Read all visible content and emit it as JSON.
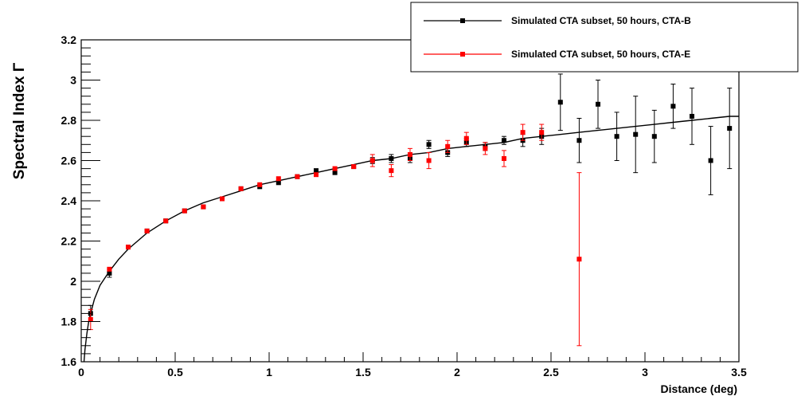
{
  "chart_data": {
    "type": "scatter",
    "xlabel": "Distance (deg)",
    "ylabel": "Spectral Index Γ",
    "xlim": [
      0,
      3.5
    ],
    "ylim": [
      1.6,
      3.2
    ],
    "x_ticks": [
      "0",
      "0.5",
      "1",
      "1.5",
      "2",
      "2.5",
      "3",
      "3.5"
    ],
    "y_ticks": [
      "1.6",
      "1.8",
      "2",
      "2.2",
      "2.4",
      "2.6",
      "2.8",
      "3",
      "3.2"
    ],
    "legend_position": "top-right",
    "fit_curve": {
      "color": "#000000",
      "x": [
        0.015,
        0.02,
        0.03,
        0.04,
        0.05,
        0.07,
        0.1,
        0.15,
        0.2,
        0.25,
        0.35,
        0.45,
        0.55,
        0.65,
        0.75,
        0.85,
        0.95,
        1.05,
        1.15,
        1.25,
        1.35,
        1.45,
        1.55,
        1.65,
        1.75,
        1.85,
        1.95,
        2.05,
        2.15,
        2.25,
        2.35,
        2.45,
        2.55,
        2.65,
        2.75,
        2.85,
        2.95,
        3.05,
        3.15,
        3.25,
        3.35,
        3.45,
        3.5
      ],
      "y": [
        1.6,
        1.66,
        1.74,
        1.8,
        1.84,
        1.91,
        1.98,
        2.05,
        2.11,
        2.16,
        2.24,
        2.3,
        2.35,
        2.39,
        2.42,
        2.45,
        2.48,
        2.5,
        2.52,
        2.54,
        2.56,
        2.58,
        2.6,
        2.61,
        2.63,
        2.64,
        2.66,
        2.67,
        2.68,
        2.69,
        2.71,
        2.72,
        2.73,
        2.74,
        2.75,
        2.76,
        2.77,
        2.78,
        2.79,
        2.8,
        2.81,
        2.82,
        2.82
      ]
    },
    "series": [
      {
        "name": "Simulated CTA subset, 50 hours, CTA-B",
        "color": "#000000",
        "x": [
          0.05,
          0.15,
          0.25,
          0.35,
          0.45,
          0.55,
          0.65,
          0.75,
          0.85,
          0.95,
          1.05,
          1.15,
          1.25,
          1.35,
          1.45,
          1.55,
          1.65,
          1.75,
          1.85,
          1.95,
          2.05,
          2.15,
          2.25,
          2.35,
          2.45,
          2.55,
          2.65,
          2.75,
          2.85,
          2.95,
          3.05,
          3.15,
          3.25,
          3.35,
          3.45
        ],
        "y": [
          1.84,
          2.04,
          2.17,
          2.25,
          2.3,
          2.35,
          2.37,
          2.41,
          2.46,
          2.47,
          2.49,
          2.52,
          2.55,
          2.54,
          2.57,
          2.6,
          2.61,
          2.61,
          2.68,
          2.64,
          2.69,
          2.67,
          2.7,
          2.7,
          2.72,
          2.89,
          2.7,
          2.88,
          2.72,
          2.73,
          2.72,
          2.87,
          2.82,
          2.6,
          2.76
        ],
        "yerr": [
          0.04,
          0.02,
          0.01,
          0.01,
          0.01,
          0.01,
          0.01,
          0.01,
          0.01,
          0.01,
          0.01,
          0.01,
          0.01,
          0.01,
          0.01,
          0.015,
          0.02,
          0.02,
          0.02,
          0.02,
          0.02,
          0.02,
          0.02,
          0.03,
          0.04,
          0.14,
          0.11,
          0.12,
          0.12,
          0.19,
          0.13,
          0.11,
          0.14,
          0.17,
          0.2
        ]
      },
      {
        "name": "Simulated CTA subset, 50 hours, CTA-E",
        "color": "#ff0000",
        "x": [
          0.05,
          0.15,
          0.25,
          0.35,
          0.45,
          0.55,
          0.65,
          0.75,
          0.85,
          0.95,
          1.05,
          1.15,
          1.25,
          1.35,
          1.45,
          1.55,
          1.65,
          1.75,
          1.85,
          1.95,
          2.05,
          2.15,
          2.25,
          2.35,
          2.45,
          2.65
        ],
        "y": [
          1.81,
          2.06,
          2.17,
          2.25,
          2.3,
          2.35,
          2.37,
          2.41,
          2.46,
          2.48,
          2.51,
          2.52,
          2.53,
          2.56,
          2.57,
          2.6,
          2.55,
          2.63,
          2.6,
          2.67,
          2.71,
          2.66,
          2.61,
          2.74,
          2.74,
          2.11
        ],
        "yerr": [
          0.05,
          0.01,
          0.01,
          0.01,
          0.01,
          0.01,
          0.01,
          0.01,
          0.01,
          0.01,
          0.01,
          0.01,
          0.01,
          0.01,
          0.01,
          0.03,
          0.03,
          0.03,
          0.04,
          0.03,
          0.03,
          0.03,
          0.04,
          0.04,
          0.04,
          0.43
        ]
      }
    ]
  }
}
